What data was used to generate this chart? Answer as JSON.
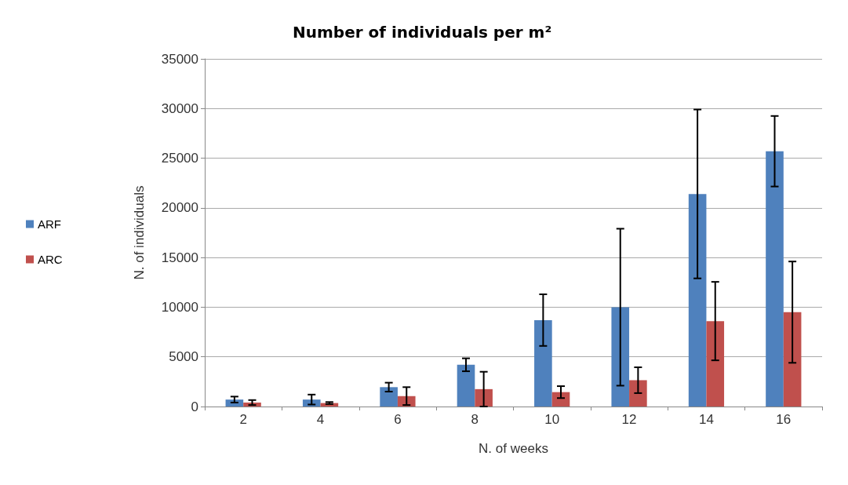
{
  "chart_data": {
    "type": "bar",
    "title": "Number of individuals per m²",
    "xlabel": "N. of weeks",
    "ylabel": "N. of individuals",
    "categories": [
      "2",
      "4",
      "6",
      "8",
      "10",
      "12",
      "14",
      "16"
    ],
    "series": [
      {
        "name": "ARF",
        "color": "#4f81bd",
        "values": [
          700,
          700,
          1950,
          4200,
          8700,
          10000,
          21400,
          25700
        ],
        "errors": [
          300,
          500,
          450,
          650,
          2600,
          7900,
          8500,
          3550
        ]
      },
      {
        "name": "ARC",
        "color": "#c0504d",
        "values": [
          400,
          350,
          1050,
          1750,
          1450,
          2650,
          8600,
          9500
        ],
        "errors": [
          250,
          100,
          900,
          1750,
          600,
          1300,
          3950,
          5100
        ]
      }
    ],
    "ylim": [
      0,
      35000
    ],
    "yticks": [
      0,
      5000,
      10000,
      15000,
      20000,
      25000,
      30000,
      35000
    ],
    "grid": "y",
    "legend": "left"
  }
}
